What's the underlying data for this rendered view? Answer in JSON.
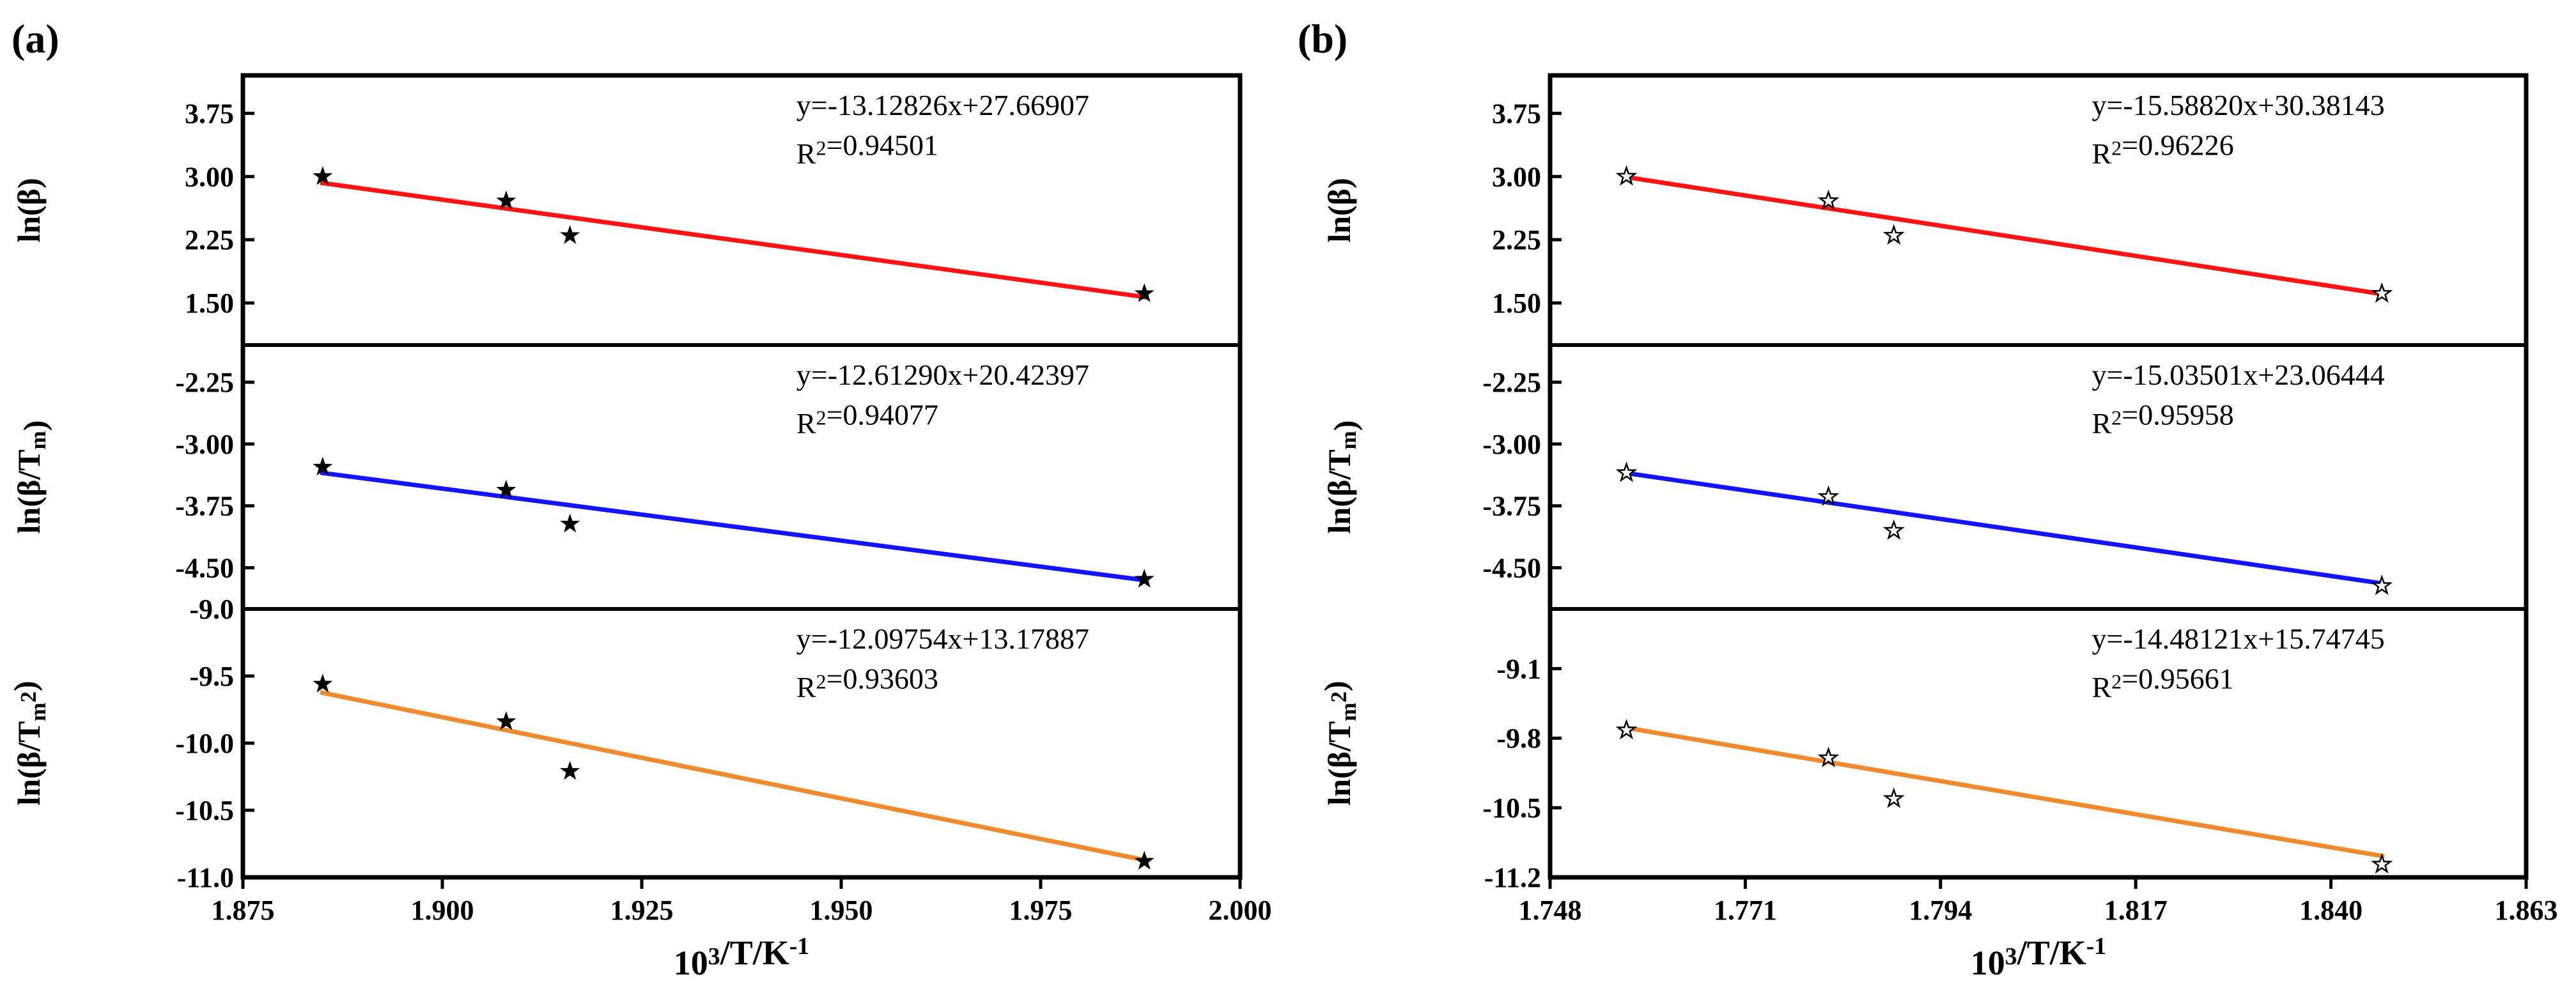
{
  "chart_data": [
    {
      "type": "scatter",
      "panel_label": "(a)",
      "marker": "filled-star",
      "xlabel": "10³/T/K⁻¹",
      "xlim": [
        1.875,
        2.0
      ],
      "xticks": [
        "1.875",
        "1.900",
        "1.925",
        "1.950",
        "1.975",
        "2.000"
      ],
      "xtick_values": [
        1.875,
        1.9,
        1.925,
        1.95,
        1.975,
        2.0
      ],
      "subplots": [
        {
          "ylabel": "ln(β)",
          "ylim": [
            1.0,
            4.2
          ],
          "yticks": [
            "1.50",
            "2.25",
            "3.00",
            "3.75"
          ],
          "ytick_values": [
            1.5,
            2.25,
            3.0,
            3.75
          ],
          "line_color": "#ff1414",
          "equation": "y=-13.12826x+27.66907",
          "r2": "R²=0.94501",
          "x": [
            1.885,
            1.908,
            1.916,
            1.988
          ],
          "y": [
            3.0,
            2.71,
            2.3,
            1.61
          ],
          "fit_slope": -13.12826,
          "fit_intercept": 27.66907
        },
        {
          "ylabel": "ln(β/Tₘ)",
          "ylim": [
            -5.0,
            -1.8
          ],
          "yticks": [
            "-4.50",
            "-3.75",
            "-3.00",
            "-2.25"
          ],
          "ytick_values": [
            -4.5,
            -3.75,
            -3.0,
            -2.25
          ],
          "line_color": "#1414ff",
          "equation": "y=-12.61290x+20.42397",
          "r2": "R²=0.94077",
          "x": [
            1.885,
            1.908,
            1.916,
            1.988
          ],
          "y": [
            -3.28,
            -3.56,
            -3.97,
            -4.64
          ],
          "fit_slope": -12.6129,
          "fit_intercept": 20.42397
        },
        {
          "ylabel": "ln(β/Tₘ²)",
          "ylim": [
            -11.0,
            -9.0
          ],
          "yticks": [
            "-11.0",
            "-10.5",
            "-10.0",
            "-9.5",
            "-9.0"
          ],
          "ytick_values": [
            -11.0,
            -10.5,
            -10.0,
            -9.5,
            -9.0
          ],
          "line_color": "#f08a2c",
          "equation": "y=-12.09754x+13.17887",
          "r2": "R²=0.93603",
          "x": [
            1.885,
            1.908,
            1.916,
            1.988
          ],
          "y": [
            -9.56,
            -9.84,
            -10.21,
            -10.88
          ],
          "fit_slope": -12.09754,
          "fit_intercept": 13.17887
        }
      ]
    },
    {
      "type": "scatter",
      "panel_label": "(b)",
      "marker": "open-star",
      "xlabel": "10³/T/K⁻¹",
      "xlim": [
        1.748,
        1.863
      ],
      "xticks": [
        "1.748",
        "1.771",
        "1.794",
        "1.817",
        "1.840",
        "1.863"
      ],
      "xtick_values": [
        1.748,
        1.771,
        1.794,
        1.817,
        1.84,
        1.863
      ],
      "subplots": [
        {
          "ylabel": "ln(β)",
          "ylim": [
            1.0,
            4.2
          ],
          "yticks": [
            "1.50",
            "2.25",
            "3.00",
            "3.75"
          ],
          "ytick_values": [
            1.5,
            2.25,
            3.0,
            3.75
          ],
          "line_color": "#ff1414",
          "equation": "y=-15.58820x+30.38143",
          "r2": "R²=0.96226",
          "x": [
            1.757,
            1.7808,
            1.7885,
            1.846
          ],
          "y": [
            3.0,
            2.71,
            2.3,
            1.61
          ],
          "fit_slope": -15.5882,
          "fit_intercept": 30.38143
        },
        {
          "ylabel": "ln(β/Tₘ)",
          "ylim": [
            -5.0,
            -1.8
          ],
          "yticks": [
            "-4.50",
            "-3.75",
            "-3.00",
            "-2.25"
          ],
          "ytick_values": [
            -4.5,
            -3.75,
            -3.0,
            -2.25
          ],
          "line_color": "#1414ff",
          "equation": "y=-15.03501x+23.06444",
          "r2": "R²=0.95958",
          "x": [
            1.757,
            1.7808,
            1.7885,
            1.846
          ],
          "y": [
            -3.35,
            -3.64,
            -4.05,
            -4.72
          ],
          "fit_slope": -15.03501,
          "fit_intercept": 23.06444
        },
        {
          "ylabel": "ln(β/Tₘ²)",
          "ylim": [
            -11.2,
            -8.5
          ],
          "yticks": [
            "-11.2",
            "-10.5",
            "-9.8",
            "-9.1"
          ],
          "ytick_values": [
            -11.2,
            -10.5,
            -9.8,
            -9.1
          ],
          "line_color": "#f08a2c",
          "equation": "y=-14.48121x+15.74745",
          "r2": "R²=0.95661",
          "x": [
            1.757,
            1.7808,
            1.7885,
            1.846
          ],
          "y": [
            -9.72,
            -10.0,
            -10.41,
            -11.07
          ],
          "fit_slope": -14.48121,
          "fit_intercept": 15.74745
        }
      ]
    }
  ]
}
